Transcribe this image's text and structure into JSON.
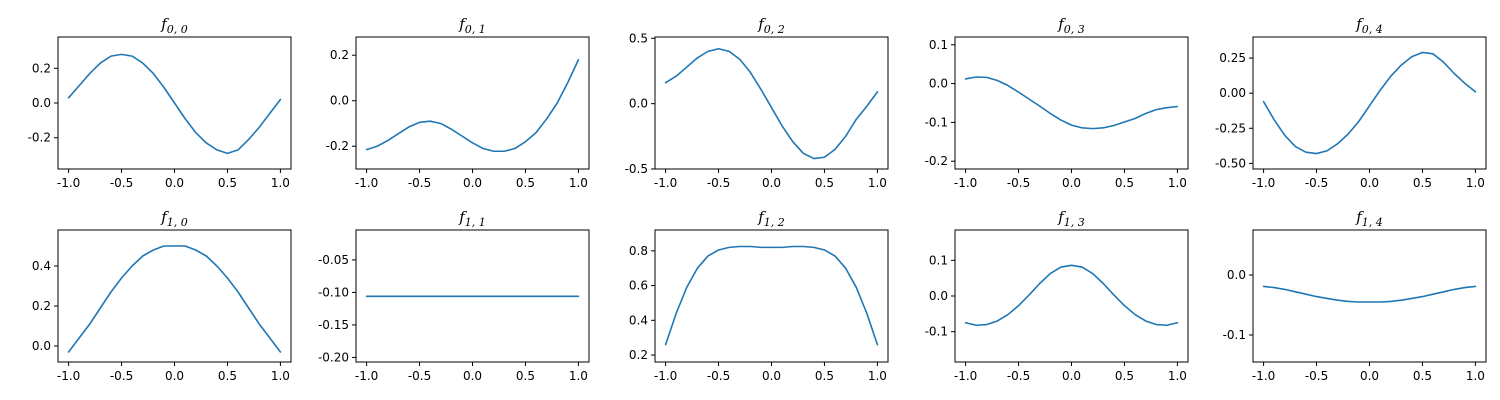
{
  "figure": {
    "layout": "2x5 grid of line plots",
    "line_color": "#1f77b4"
  },
  "chart_data": [
    {
      "type": "line",
      "title": "f_{0,0}",
      "title_main": "f",
      "title_sub": "0, 0",
      "xlim": [
        -1.1,
        1.1
      ],
      "ylim": [
        -0.38,
        0.38
      ],
      "xticks": [
        -1.0,
        -0.5,
        0.0,
        0.5,
        1.0
      ],
      "xticklabels": [
        "-1.0",
        "-0.5",
        "0.0",
        "0.5",
        "1.0"
      ],
      "yticks": [
        -0.2,
        0.0,
        0.2
      ],
      "yticklabels": [
        "-0.2",
        "0.0",
        "0.2"
      ],
      "grid": false,
      "x": [
        -1.0,
        -0.9,
        -0.8,
        -0.7,
        -0.6,
        -0.5,
        -0.4,
        -0.3,
        -0.2,
        -0.1,
        0.0,
        0.1,
        0.2,
        0.3,
        0.4,
        0.5,
        0.6,
        0.7,
        0.8,
        0.9,
        1.0
      ],
      "y": [
        0.03,
        0.1,
        0.17,
        0.23,
        0.27,
        0.28,
        0.27,
        0.23,
        0.17,
        0.09,
        0.0,
        -0.09,
        -0.17,
        -0.23,
        -0.27,
        -0.29,
        -0.27,
        -0.21,
        -0.14,
        -0.06,
        0.02
      ]
    },
    {
      "type": "line",
      "title": "f_{0,1}",
      "title_main": "f",
      "title_sub": "0, 1",
      "xlim": [
        -1.1,
        1.1
      ],
      "ylim": [
        -0.3,
        0.28
      ],
      "xticks": [
        -1.0,
        -0.5,
        0.0,
        0.5,
        1.0
      ],
      "xticklabels": [
        "-1.0",
        "-0.5",
        "0.0",
        "0.5",
        "1.0"
      ],
      "yticks": [
        -0.2,
        0.0,
        0.2
      ],
      "yticklabels": [
        "-0.2",
        "0.0",
        "0.2"
      ],
      "grid": false,
      "x": [
        -1.0,
        -0.9,
        -0.8,
        -0.7,
        -0.6,
        -0.5,
        -0.4,
        -0.3,
        -0.2,
        -0.1,
        0.0,
        0.1,
        0.2,
        0.3,
        0.4,
        0.5,
        0.6,
        0.7,
        0.8,
        0.9,
        1.0
      ],
      "y": [
        -0.215,
        -0.2,
        -0.175,
        -0.145,
        -0.115,
        -0.095,
        -0.09,
        -0.1,
        -0.125,
        -0.155,
        -0.185,
        -0.21,
        -0.222,
        -0.222,
        -0.21,
        -0.18,
        -0.14,
        -0.08,
        -0.01,
        0.08,
        0.18
      ]
    },
    {
      "type": "line",
      "title": "f_{0,2}",
      "title_main": "f",
      "title_sub": "0, 2",
      "xlim": [
        -1.1,
        1.1
      ],
      "ylim": [
        -0.5,
        0.51
      ],
      "xticks": [
        -1.0,
        -0.5,
        0.0,
        0.5,
        1.0
      ],
      "xticklabels": [
        "-1.0",
        "-0.5",
        "0.0",
        "0.5",
        "1.0"
      ],
      "yticks": [
        -0.5,
        0.0,
        0.5
      ],
      "yticklabels": [
        "-0.5",
        "0.0",
        "0.5"
      ],
      "grid": false,
      "x": [
        -1.0,
        -0.9,
        -0.8,
        -0.7,
        -0.6,
        -0.5,
        -0.4,
        -0.3,
        -0.2,
        -0.1,
        0.0,
        0.1,
        0.2,
        0.3,
        0.4,
        0.5,
        0.6,
        0.7,
        0.8,
        0.9,
        1.0
      ],
      "y": [
        0.16,
        0.21,
        0.28,
        0.35,
        0.4,
        0.42,
        0.4,
        0.34,
        0.24,
        0.11,
        -0.03,
        -0.17,
        -0.29,
        -0.38,
        -0.42,
        -0.41,
        -0.35,
        -0.25,
        -0.12,
        -0.02,
        0.09
      ]
    },
    {
      "type": "line",
      "title": "f_{0,3}",
      "title_main": "f",
      "title_sub": "0, 3",
      "xlim": [
        -1.1,
        1.1
      ],
      "ylim": [
        -0.22,
        0.12
      ],
      "xticks": [
        -1.0,
        -0.5,
        0.0,
        0.5,
        1.0
      ],
      "xticklabels": [
        "-1.0",
        "-0.5",
        "0.0",
        "0.5",
        "1.0"
      ],
      "yticks": [
        -0.2,
        -0.1,
        0.0,
        0.1
      ],
      "yticklabels": [
        "-0.2",
        "-0.1",
        "0.0",
        "0.1"
      ],
      "grid": false,
      "x": [
        -1.0,
        -0.9,
        -0.8,
        -0.7,
        -0.6,
        -0.5,
        -0.4,
        -0.3,
        -0.2,
        -0.1,
        0.0,
        0.1,
        0.2,
        0.3,
        0.4,
        0.5,
        0.6,
        0.7,
        0.8,
        0.9,
        1.0
      ],
      "y": [
        0.012,
        0.017,
        0.016,
        0.008,
        -0.005,
        -0.022,
        -0.04,
        -0.058,
        -0.077,
        -0.094,
        -0.107,
        -0.114,
        -0.116,
        -0.114,
        -0.108,
        -0.099,
        -0.09,
        -0.077,
        -0.067,
        -0.062,
        -0.059
      ]
    },
    {
      "type": "line",
      "title": "f_{0,4}",
      "title_main": "f",
      "title_sub": "0, 4",
      "xlim": [
        -1.1,
        1.1
      ],
      "ylim": [
        -0.54,
        0.4
      ],
      "xticks": [
        -1.0,
        -0.5,
        0.0,
        0.5,
        1.0
      ],
      "xticklabels": [
        "-1.0",
        "-0.5",
        "0.0",
        "0.5",
        "1.0"
      ],
      "yticks": [
        -0.5,
        -0.25,
        0.0,
        0.25
      ],
      "yticklabels": [
        "-0.50",
        "-0.25",
        "0.00",
        "0.25"
      ],
      "grid": false,
      "x": [
        -1.0,
        -0.9,
        -0.8,
        -0.7,
        -0.6,
        -0.5,
        -0.4,
        -0.3,
        -0.2,
        -0.1,
        0.0,
        0.1,
        0.2,
        0.3,
        0.4,
        0.5,
        0.6,
        0.7,
        0.8,
        0.9,
        1.0
      ],
      "y": [
        -0.06,
        -0.19,
        -0.3,
        -0.38,
        -0.42,
        -0.43,
        -0.41,
        -0.36,
        -0.29,
        -0.2,
        -0.09,
        0.02,
        0.12,
        0.2,
        0.26,
        0.29,
        0.28,
        0.22,
        0.14,
        0.07,
        0.01
      ]
    },
    {
      "type": "line",
      "title": "f_{1,0}",
      "title_main": "f",
      "title_sub": "1, 0",
      "xlim": [
        -1.1,
        1.1
      ],
      "ylim": [
        -0.08,
        0.58
      ],
      "xticks": [
        -1.0,
        -0.5,
        0.0,
        0.5,
        1.0
      ],
      "xticklabels": [
        "-1.0",
        "-0.5",
        "0.0",
        "0.5",
        "1.0"
      ],
      "yticks": [
        0.0,
        0.2,
        0.4
      ],
      "yticklabels": [
        "0.0",
        "0.2",
        "0.4"
      ],
      "grid": false,
      "x": [
        -1.0,
        -0.9,
        -0.8,
        -0.7,
        -0.6,
        -0.5,
        -0.4,
        -0.3,
        -0.2,
        -0.1,
        0.0,
        0.1,
        0.2,
        0.3,
        0.4,
        0.5,
        0.6,
        0.7,
        0.8,
        0.9,
        1.0
      ],
      "y": [
        -0.03,
        0.04,
        0.11,
        0.19,
        0.27,
        0.34,
        0.4,
        0.45,
        0.48,
        0.5,
        0.5,
        0.5,
        0.48,
        0.45,
        0.4,
        0.34,
        0.27,
        0.19,
        0.11,
        0.04,
        -0.03
      ]
    },
    {
      "type": "line",
      "title": "f_{1,1}",
      "title_main": "f",
      "title_sub": "1, 1",
      "xlim": [
        -1.1,
        1.1
      ],
      "ylim": [
        -0.207,
        -0.004
      ],
      "xticks": [
        -1.0,
        -0.5,
        0.0,
        0.5,
        1.0
      ],
      "xticklabels": [
        "-1.0",
        "-0.5",
        "0.0",
        "0.5",
        "1.0"
      ],
      "yticks": [
        -0.2,
        -0.15,
        -0.1,
        -0.05
      ],
      "yticklabels": [
        "-0.20",
        "-0.15",
        "-0.10",
        "-0.05"
      ],
      "grid": false,
      "x": [
        -1.0,
        1.0
      ],
      "y": [
        -0.106,
        -0.106
      ]
    },
    {
      "type": "line",
      "title": "f_{1,2}",
      "title_main": "f",
      "title_sub": "1, 2",
      "xlim": [
        -1.1,
        1.1
      ],
      "ylim": [
        0.16,
        0.92
      ],
      "xticks": [
        -1.0,
        -0.5,
        0.0,
        0.5,
        1.0
      ],
      "xticklabels": [
        "-1.0",
        "-0.5",
        "0.0",
        "0.5",
        "1.0"
      ],
      "yticks": [
        0.2,
        0.4,
        0.6,
        0.8
      ],
      "yticklabels": [
        "0.2",
        "0.4",
        "0.6",
        "0.8"
      ],
      "grid": false,
      "x": [
        -1.0,
        -0.9,
        -0.8,
        -0.7,
        -0.6,
        -0.5,
        -0.4,
        -0.3,
        -0.2,
        -0.1,
        0.0,
        0.1,
        0.2,
        0.3,
        0.4,
        0.5,
        0.6,
        0.7,
        0.8,
        0.9,
        1.0
      ],
      "y": [
        0.26,
        0.44,
        0.59,
        0.7,
        0.77,
        0.805,
        0.82,
        0.825,
        0.825,
        0.82,
        0.82,
        0.82,
        0.825,
        0.825,
        0.82,
        0.805,
        0.77,
        0.7,
        0.59,
        0.44,
        0.26
      ]
    },
    {
      "type": "line",
      "title": "f_{1,3}",
      "title_main": "f",
      "title_sub": "1, 3",
      "xlim": [
        -1.1,
        1.1
      ],
      "ylim": [
        -0.185,
        0.185
      ],
      "xticks": [
        -1.0,
        -0.5,
        0.0,
        0.5,
        1.0
      ],
      "xticklabels": [
        "-1.0",
        "-0.5",
        "0.0",
        "0.5",
        "1.0"
      ],
      "yticks": [
        -0.1,
        0.0,
        0.1
      ],
      "yticklabels": [
        "-0.1",
        "0.0",
        "0.1"
      ],
      "grid": false,
      "x": [
        -1.0,
        -0.9,
        -0.8,
        -0.7,
        -0.6,
        -0.5,
        -0.4,
        -0.3,
        -0.2,
        -0.1,
        0.0,
        0.1,
        0.2,
        0.3,
        0.4,
        0.5,
        0.6,
        0.7,
        0.8,
        0.9,
        1.0
      ],
      "y": [
        -0.075,
        -0.082,
        -0.08,
        -0.07,
        -0.052,
        -0.027,
        0.003,
        0.035,
        0.063,
        0.081,
        0.086,
        0.081,
        0.063,
        0.035,
        0.003,
        -0.027,
        -0.052,
        -0.07,
        -0.08,
        -0.082,
        -0.075
      ]
    },
    {
      "type": "line",
      "title": "f_{1,4}",
      "title_main": "f",
      "title_sub": "1, 4",
      "xlim": [
        -1.1,
        1.1
      ],
      "ylim": [
        -0.145,
        0.075
      ],
      "xticks": [
        -1.0,
        -0.5,
        0.0,
        0.5,
        1.0
      ],
      "xticklabels": [
        "-1.0",
        "-0.5",
        "0.0",
        "0.5",
        "1.0"
      ],
      "yticks": [
        -0.1,
        0.0
      ],
      "yticklabels": [
        "-0.1",
        "0.0"
      ],
      "grid": false,
      "x": [
        -1.0,
        -0.9,
        -0.8,
        -0.7,
        -0.6,
        -0.5,
        -0.4,
        -0.3,
        -0.2,
        -0.1,
        0.0,
        0.1,
        0.2,
        0.3,
        0.4,
        0.5,
        0.6,
        0.7,
        0.8,
        0.9,
        1.0
      ],
      "y": [
        -0.019,
        -0.021,
        -0.024,
        -0.028,
        -0.032,
        -0.036,
        -0.039,
        -0.042,
        -0.044,
        -0.045,
        -0.045,
        -0.045,
        -0.044,
        -0.042,
        -0.039,
        -0.036,
        -0.032,
        -0.028,
        -0.024,
        -0.021,
        -0.019
      ]
    }
  ]
}
